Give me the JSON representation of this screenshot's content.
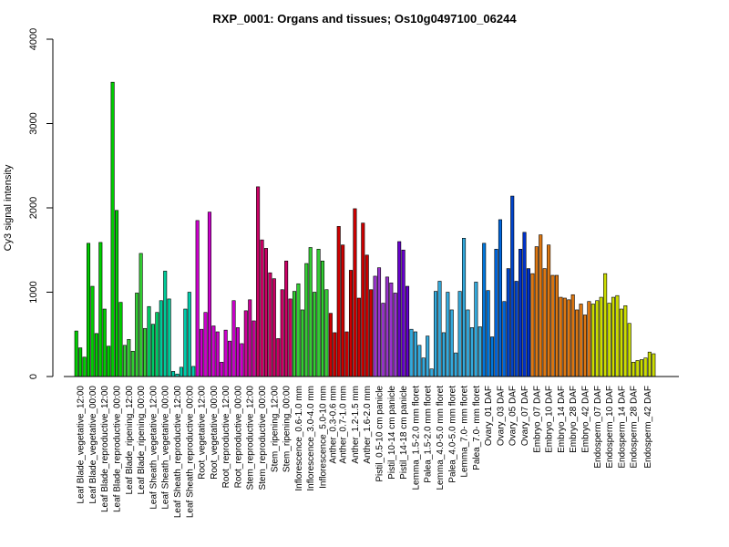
{
  "chart_data": {
    "type": "bar",
    "title": "RXP_0001: Organs and tissues; Os10g0497100_06244",
    "xlabel": "",
    "ylabel": "Cy3 signal intensity",
    "ylim": [
      0,
      4000
    ],
    "yticks": [
      0,
      1000,
      2000,
      3000,
      4000
    ],
    "grid": false,
    "groups": [
      {
        "label": "Leaf Blade_vegetative_12:00",
        "color": "#00cc00",
        "values": [
          540,
          340,
          230
        ]
      },
      {
        "label": "Leaf Blade_vegetative_00:00",
        "color": "#00cc00",
        "values": [
          1580,
          1070,
          510
        ]
      },
      {
        "label": "Leaf Blade_reproductive_12:00",
        "color": "#00cc00",
        "values": [
          1590,
          800,
          360
        ]
      },
      {
        "label": "Leaf Blade_reproductive_00:00",
        "color": "#00cc00",
        "values": [
          3490,
          1970,
          880
        ]
      },
      {
        "label": "Leaf Blade_ripening_12:00",
        "color": "#33cc33",
        "values": [
          370,
          440,
          300
        ]
      },
      {
        "label": "Leaf Blade_ripening_00:00",
        "color": "#33cc33",
        "values": [
          990,
          1460,
          570
        ]
      },
      {
        "label": "Leaf Sheath_vegetative_12:00",
        "color": "#00cc66",
        "values": [
          830,
          620,
          760
        ]
      },
      {
        "label": "Leaf Sheath_vegetative_00:00",
        "color": "#00cc99",
        "values": [
          900,
          1250,
          920
        ]
      },
      {
        "label": "Leaf Sheath_reproductive_12:00",
        "color": "#00ccaa",
        "values": [
          60,
          30,
          110
        ]
      },
      {
        "label": "Leaf Sheath_reproductive_00:00",
        "color": "#00ccaa",
        "values": [
          800,
          1000,
          120
        ]
      },
      {
        "label": "Root_vegetative_12:00",
        "color": "#cc00cc",
        "values": [
          1850,
          560,
          760
        ]
      },
      {
        "label": "Root_vegetative_00:00",
        "color": "#cc00cc",
        "values": [
          1950,
          600,
          530
        ]
      },
      {
        "label": "Root_reproductive_12:00",
        "color": "#cc00cc",
        "values": [
          170,
          550,
          420
        ]
      },
      {
        "label": "Root_reproductive_00:00",
        "color": "#cc00cc",
        "values": [
          900,
          580,
          390
        ]
      },
      {
        "label": "Stem_reproductive_12:00",
        "color": "#cc0099",
        "values": [
          780,
          910,
          660
        ]
      },
      {
        "label": "Stem_reproductive_00:00",
        "color": "#cc0066",
        "values": [
          2250,
          1620,
          1520
        ]
      },
      {
        "label": "Stem_ripening_12:00",
        "color": "#cc0066",
        "values": [
          1230,
          1160,
          450
        ]
      },
      {
        "label": "Stem_ripening_00:00",
        "color": "#cc0066",
        "values": [
          1030,
          1370,
          920
        ]
      },
      {
        "label": "Inflorescence_0.6-1.0 mm",
        "color": "#33cc33",
        "values": [
          1010,
          1100,
          790
        ]
      },
      {
        "label": "Inflorescence_3.0-4.0 mm",
        "color": "#33cc33",
        "values": [
          1340,
          1530,
          1000
        ]
      },
      {
        "label": "Inflorescence_5.0-10 mm",
        "color": "#33cc33",
        "values": [
          1510,
          1370,
          1030
        ]
      },
      {
        "label": "Anther_0.3-0.6 mm",
        "color": "#cc0000",
        "values": [
          750,
          520
        ]
      },
      {
        "label": "Anther_0.7-1.0 mm",
        "color": "#cc0000",
        "values": [
          1780,
          1560,
          530
        ]
      },
      {
        "label": "Anther_1.2-1.5 mm",
        "color": "#cc0000",
        "values": [
          1260,
          1990,
          930
        ]
      },
      {
        "label": "Anther_1.6-2.0 mm",
        "color": "#cc0000",
        "values": [
          1820,
          1440,
          1030
        ]
      },
      {
        "label": "Pistil_0.5-10 cm panicle",
        "color": "#9933cc",
        "values": [
          1190,
          1290,
          870
        ]
      },
      {
        "label": "Pistil_10-14 cm panicle",
        "color": "#9933cc",
        "values": [
          1180,
          1110,
          990
        ]
      },
      {
        "label": "Pistil_14-18 cm panicle",
        "color": "#6600cc",
        "values": [
          1600,
          1500,
          1070
        ]
      },
      {
        "label": "Lemma_1.5-2.0 mm floret",
        "color": "#33aadd",
        "values": [
          560,
          530,
          370
        ]
      },
      {
        "label": "Palea_1.5-2.0 mm floret",
        "color": "#33aadd",
        "values": [
          220,
          480,
          90
        ]
      },
      {
        "label": "Lemma_4.0-5.0 mm floret",
        "color": "#33aadd",
        "values": [
          1010,
          1130,
          520
        ]
      },
      {
        "label": "Palea_4.0-5.0 mm floret",
        "color": "#33aadd",
        "values": [
          1000,
          790,
          280
        ]
      },
      {
        "label": "Lemma_7.0- mm floret",
        "color": "#33aadd",
        "values": [
          1010,
          1640,
          790
        ]
      },
      {
        "label": "Palea_7.0- mm floret",
        "color": "#33aadd",
        "values": [
          580,
          1120,
          590
        ]
      },
      {
        "label": "Ovary_01 DAF",
        "color": "#0077dd",
        "values": [
          1580,
          1020,
          470
        ]
      },
      {
        "label": "Ovary_03 DAF",
        "color": "#0066dd",
        "values": [
          1510,
          1860,
          890
        ]
      },
      {
        "label": "Ovary_05 DAF",
        "color": "#0044cc",
        "values": [
          1280,
          2140,
          1130
        ]
      },
      {
        "label": "Ovary_07 DAF",
        "color": "#0033cc",
        "values": [
          1510,
          1710,
          1280
        ]
      },
      {
        "label": "Embryo_07 DAF",
        "color": "#dd7711",
        "values": [
          1220,
          1540,
          1680
        ]
      },
      {
        "label": "Embryo_10 DAF",
        "color": "#dd7711",
        "values": [
          1280,
          1560,
          1200
        ]
      },
      {
        "label": "Embryo_14 DAF",
        "color": "#dd7711",
        "values": [
          1200,
          940,
          930
        ]
      },
      {
        "label": "Embryo_28 DAF",
        "color": "#dd7711",
        "values": [
          910,
          970,
          790
        ]
      },
      {
        "label": "Embryo_42 DAF",
        "color": "#dd7711",
        "values": [
          860,
          730,
          890
        ]
      },
      {
        "label": "Endosperm_07 DAF",
        "color": "#ccdd00",
        "values": [
          860,
          900,
          940
        ]
      },
      {
        "label": "Endosperm_10 DAF",
        "color": "#ccdd00",
        "values": [
          1220,
          870,
          940
        ]
      },
      {
        "label": "Endosperm_14 DAF",
        "color": "#ccdd00",
        "values": [
          960,
          800,
          840
        ]
      },
      {
        "label": "Endosperm_28 DAF",
        "color": "#ccdd00",
        "values": [
          630,
          170,
          190
        ]
      },
      {
        "label": "Endosperm_42 DAF",
        "color": "#ccdd00",
        "values": [
          200,
          220,
          290,
          270
        ]
      }
    ]
  }
}
